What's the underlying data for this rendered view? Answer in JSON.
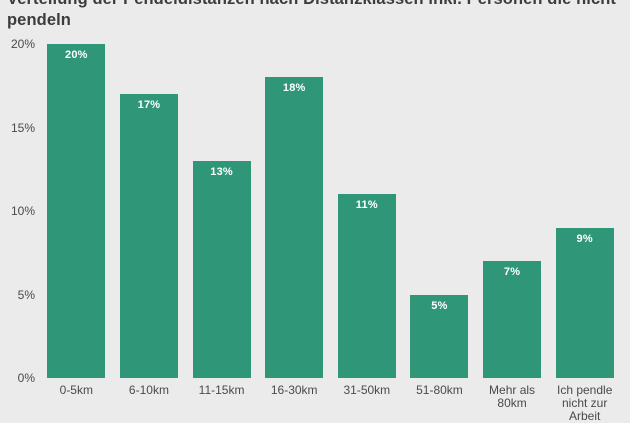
{
  "title": {
    "full": "Verteilung der Pendeldistanzen nach Distanzklassen inkl. Personen die nicht pendeln",
    "line1": "Verteilung der Pendeldistanzen nach Distanzklassen inkl. Personen die nicht",
    "line2": "pendeln"
  },
  "colors": {
    "background": "#ebebeb",
    "bar": "#2f9778",
    "bar_label": "#ffffff",
    "title_text": "#3c3c3c",
    "axis_text": "#4a4a4a"
  },
  "chart_data": {
    "type": "bar",
    "title": "Verteilung der Pendeldistanzen nach Distanzklassen inkl. Personen die nicht pendeln",
    "categories": [
      "0-5km",
      "6-10km",
      "11-15km",
      "16-30km",
      "31-50km",
      "51-80km",
      "Mehr als 80km",
      "Ich pendle nicht zur Arbeit"
    ],
    "values": [
      20,
      17,
      13,
      18,
      11,
      5,
      7,
      9
    ],
    "bar_labels": [
      "20%",
      "17%",
      "13%",
      "18%",
      "11%",
      "5%",
      "7%",
      "9%"
    ],
    "yticks": [
      {
        "value": 0,
        "label": "0%"
      },
      {
        "value": 5,
        "label": "5%"
      },
      {
        "value": 10,
        "label": "10%"
      },
      {
        "value": 15,
        "label": "15%"
      },
      {
        "value": 20,
        "label": "20%"
      }
    ],
    "ylim": [
      0,
      20
    ],
    "grid": false,
    "legend_position": "none",
    "xlabel": "",
    "ylabel": ""
  }
}
